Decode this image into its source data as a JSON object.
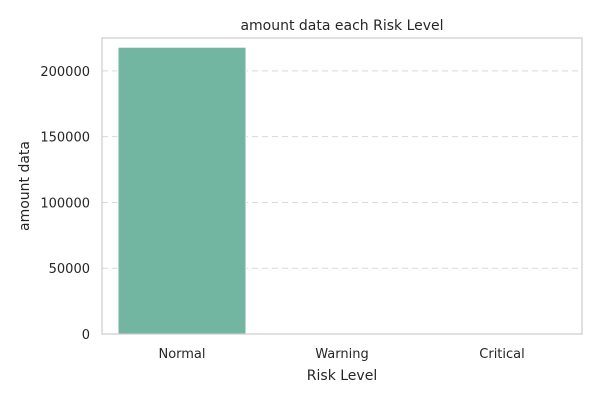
{
  "chart_data": {
    "type": "bar",
    "title": "amount data each Risk Level",
    "xlabel": "Risk Level",
    "ylabel": "amount data",
    "categories": [
      "Normal",
      "Warning",
      "Critical"
    ],
    "values": [
      218000,
      0,
      0
    ],
    "ylim": [
      0,
      225000
    ],
    "yticks": [
      0,
      50000,
      100000,
      150000,
      200000
    ],
    "ytick_labels": [
      "0",
      "50000",
      "100000",
      "150000",
      "200000"
    ],
    "grid": "y-axis dashed",
    "legend": "none",
    "bar_color": "#72b6a1",
    "grid_color": "#d9d9d9",
    "frame_color": "#cccccc"
  }
}
